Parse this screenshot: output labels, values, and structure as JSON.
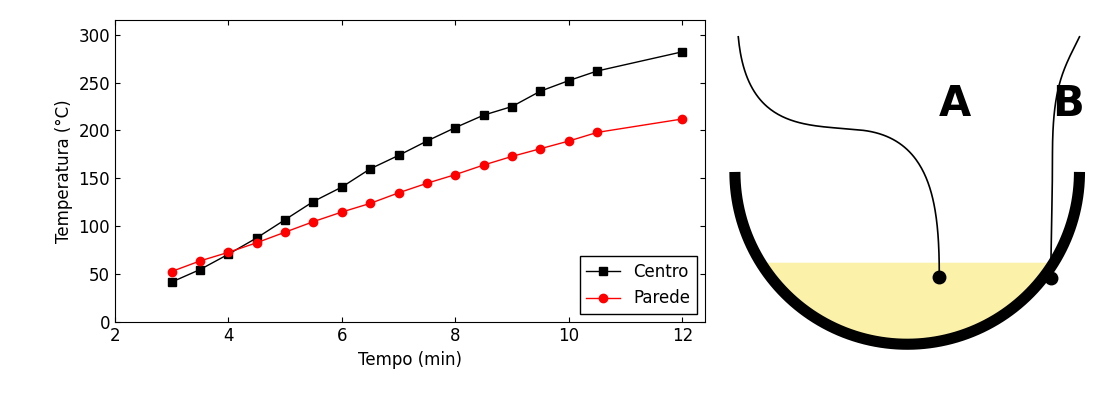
{
  "chart_data": {
    "type": "line",
    "x": [
      3,
      3.5,
      4,
      4.5,
      5,
      5.5,
      6,
      6.5,
      7,
      7.5,
      8,
      8.5,
      9,
      9.5,
      10,
      10.5,
      12
    ],
    "series": [
      {
        "name": "Centro",
        "color": "#000000",
        "marker": "s",
        "line_style": "solid",
        "values": [
          42,
          55,
          71,
          88,
          107,
          126,
          141,
          160,
          174,
          189,
          203,
          216,
          225,
          241,
          252,
          262,
          282
        ]
      },
      {
        "name": "Parede",
        "color": "#ff0000",
        "marker": "o",
        "line_style": "solid",
        "values": [
          53,
          64,
          73,
          83,
          94,
          105,
          115,
          124,
          135,
          145,
          154,
          164,
          173,
          181,
          189,
          198,
          212
        ]
      }
    ],
    "x_label": "Tempo (min)",
    "y_label": "Temperatura (°C)",
    "xlim": [
      2,
      12.4
    ],
    "xticks": [
      2,
      4,
      6,
      8,
      10,
      12
    ],
    "ylim": [
      0,
      315
    ],
    "yticks": [
      0,
      50,
      100,
      150,
      200,
      250,
      300
    ],
    "legend": "lower right"
  },
  "diagram": {
    "labels": [
      "A",
      "B"
    ]
  }
}
